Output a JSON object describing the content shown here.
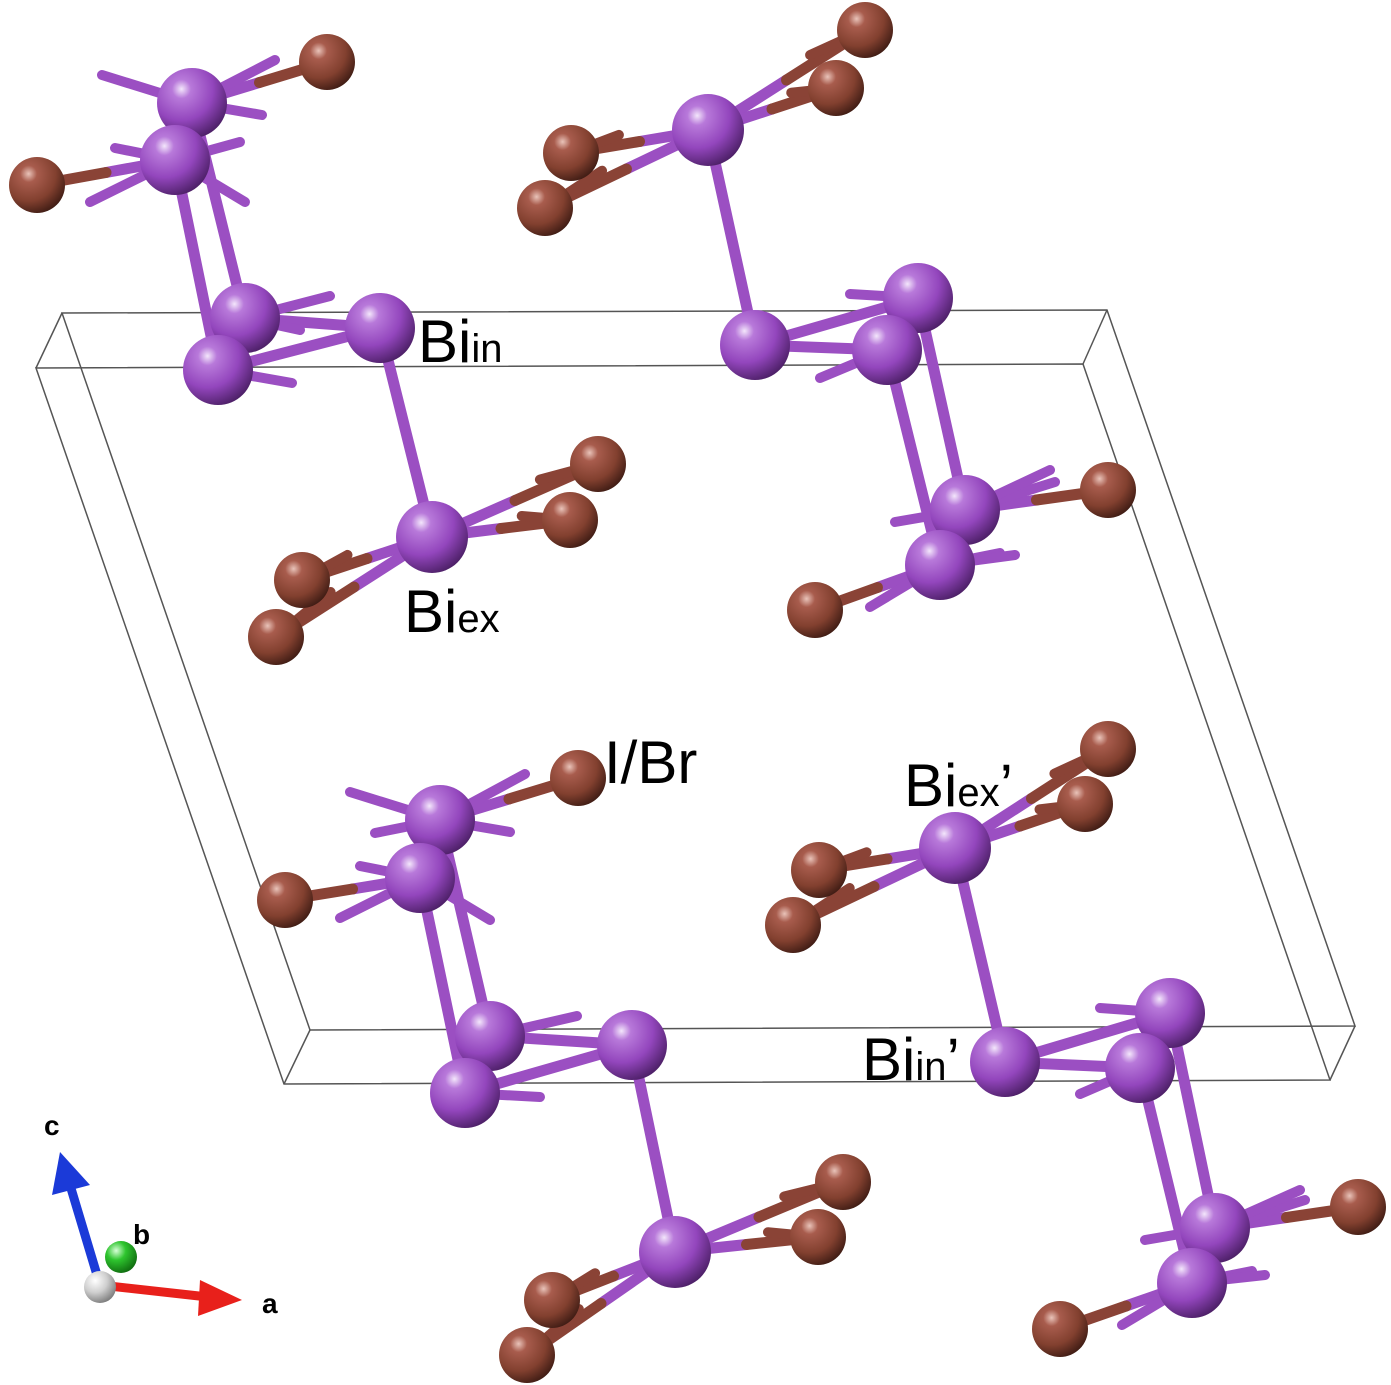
{
  "labels": {
    "bi_in": {
      "main": "Bi",
      "sub": "in",
      "suffix": ""
    },
    "bi_ex": {
      "main": "Bi",
      "sub": "ex",
      "suffix": ""
    },
    "halide": {
      "text": "I/Br"
    },
    "bi_ex_prime": {
      "main": "Bi",
      "sub": "ex",
      "suffix": "’"
    },
    "bi_in_prime": {
      "main": "Bi",
      "sub": "in",
      "suffix": "’"
    }
  },
  "axes": {
    "a": "a",
    "b": "b",
    "c": "c"
  },
  "colors": {
    "bismuth": "#9b4fc2",
    "halide": "#8a4336",
    "cell_edge": "#555555",
    "axis_a": "#e8201b",
    "axis_b": "#2ec52e",
    "axis_c": "#1b3ad8",
    "axis_origin": "#d0d0d0"
  }
}
